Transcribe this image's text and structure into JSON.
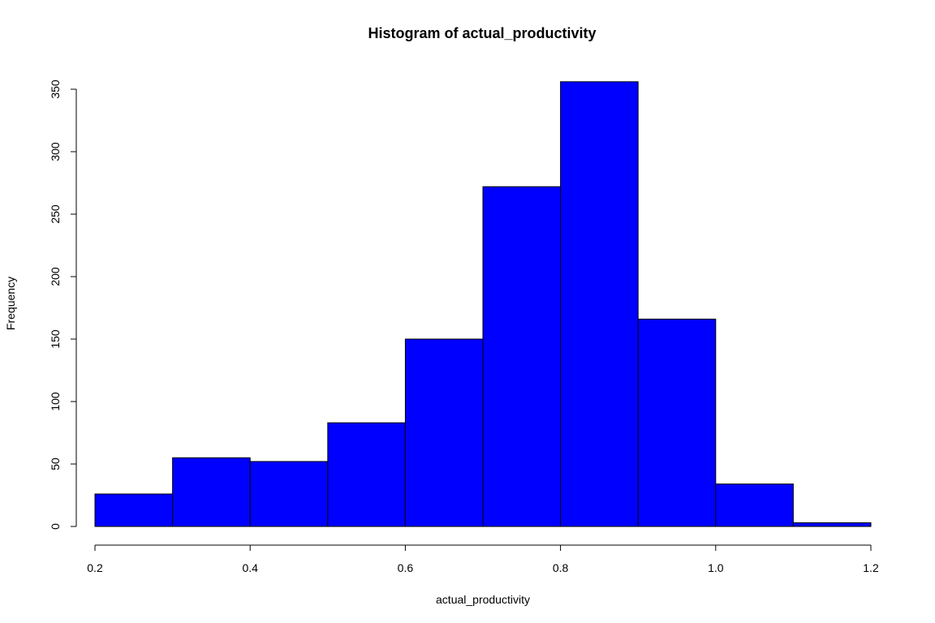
{
  "chart_data": {
    "type": "bar",
    "title": "Histogram of actual_productivity",
    "xlabel": "actual_productivity",
    "ylabel": "Frequency",
    "bin_edges": [
      0.2,
      0.3,
      0.4,
      0.5,
      0.6,
      0.7,
      0.8,
      0.9,
      1.0,
      1.1,
      1.2
    ],
    "values": [
      26,
      55,
      52,
      83,
      150,
      272,
      356,
      166,
      34,
      3
    ],
    "xlim": [
      0.2,
      1.2
    ],
    "ylim": [
      0,
      350
    ],
    "x_ticks": [
      "0.2",
      "0.4",
      "0.6",
      "0.8",
      "1.0",
      "1.2"
    ],
    "y_ticks": [
      "0",
      "50",
      "100",
      "150",
      "200",
      "250",
      "300",
      "350"
    ],
    "bar_color": "#0000ff",
    "bar_border_color": "#000000",
    "grid": false,
    "legend": "none"
  }
}
